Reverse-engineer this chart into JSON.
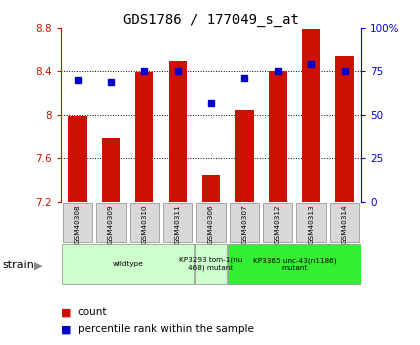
{
  "title": "GDS1786 / 177049_s_at",
  "samples": [
    "GSM40308",
    "GSM40309",
    "GSM40310",
    "GSM40311",
    "GSM40306",
    "GSM40307",
    "GSM40312",
    "GSM40313",
    "GSM40314"
  ],
  "counts": [
    7.99,
    7.79,
    8.39,
    8.49,
    7.45,
    8.04,
    8.4,
    8.79,
    8.54
  ],
  "percentiles": [
    70,
    69,
    75,
    75,
    57,
    71,
    75,
    79,
    75
  ],
  "ylim_left": [
    7.2,
    8.8
  ],
  "ylim_right": [
    0,
    100
  ],
  "left_ticks": [
    7.2,
    7.6,
    8.0,
    8.4,
    8.8
  ],
  "right_ticks": [
    0,
    25,
    50,
    75,
    100
  ],
  "left_tick_labels": [
    "7.2",
    "7.6",
    "8",
    "8.4",
    "8.8"
  ],
  "right_tick_labels": [
    "0",
    "25",
    "50",
    "75",
    "100%"
  ],
  "bar_color": "#cc1100",
  "dot_color": "#0000cc",
  "bg_color": "#ffffff",
  "grid_lines": [
    7.6,
    8.0,
    8.4
  ],
  "groups": [
    {
      "label": "wildtype",
      "start": 0,
      "end": 3,
      "color": "#ccffcc"
    },
    {
      "label": "KP3293 tom-1(nu\n468) mutant",
      "start": 4,
      "end": 4,
      "color": "#ccffcc"
    },
    {
      "label": "KP3365 unc-43(n1186)\nmutant",
      "start": 5,
      "end": 8,
      "color": "#33ee33"
    }
  ],
  "legend_count": "count",
  "legend_percentile": "percentile rank within the sample"
}
